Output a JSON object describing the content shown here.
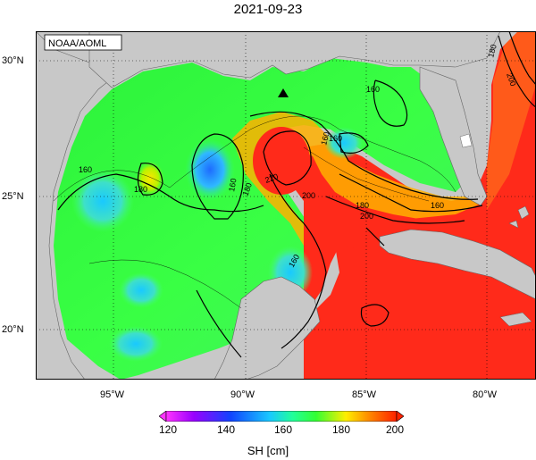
{
  "title": "2021-09-23",
  "credit": "NOAA/AOML",
  "lat_labels": [
    "30°N",
    "25°N",
    "20°N"
  ],
  "lon_labels": [
    "95°W",
    "90°W",
    "85°W",
    "80°W"
  ],
  "contour_labels": [
    "160",
    "160",
    "180",
    "160",
    "160",
    "220",
    "180",
    "200",
    "160",
    "180",
    "200",
    "160",
    "180",
    "200",
    "160"
  ],
  "colorbar": {
    "label": "SH [cm]",
    "ticks": [
      "120",
      "140",
      "160",
      "180",
      "200"
    ],
    "range": [
      120,
      200
    ]
  },
  "marker": "triangle-marker"
}
